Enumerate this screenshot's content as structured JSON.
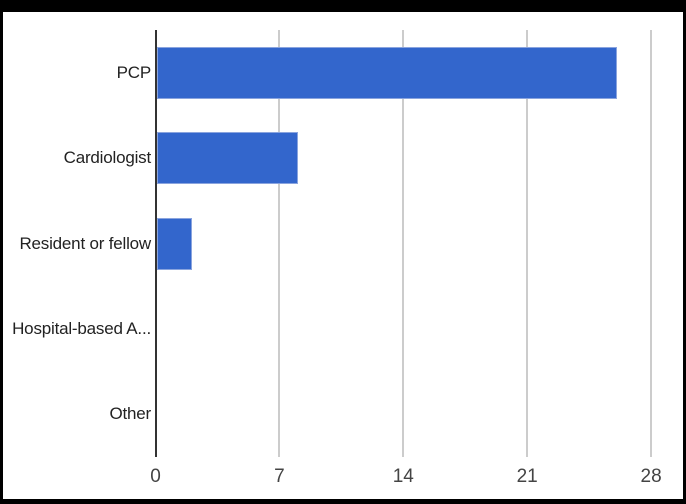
{
  "frame": {
    "background_color": "#000000",
    "chart_background_color": "#ffffff"
  },
  "chart_data": {
    "type": "bar",
    "orientation": "horizontal",
    "title": "",
    "categories": [
      "PCP",
      "Cardiologist",
      "Resident or fellow",
      "Hospital-based A...",
      "Other"
    ],
    "values": [
      26,
      8,
      2,
      0,
      0
    ],
    "xticks": [
      "0",
      "7",
      "14",
      "21",
      "28"
    ],
    "xtick_values": [
      0,
      7,
      14,
      21,
      28
    ],
    "xlim": [
      0,
      28
    ],
    "xlabel": "",
    "ylabel": "",
    "grid": true,
    "legend_position": "none",
    "bar_color": "#3366cc",
    "bar_stroke_color": "#8aa4de",
    "gridline_color": "#cccccc",
    "baseline_color": "#333333",
    "category_label_color": "#222222",
    "tick_label_color": "#444444"
  }
}
